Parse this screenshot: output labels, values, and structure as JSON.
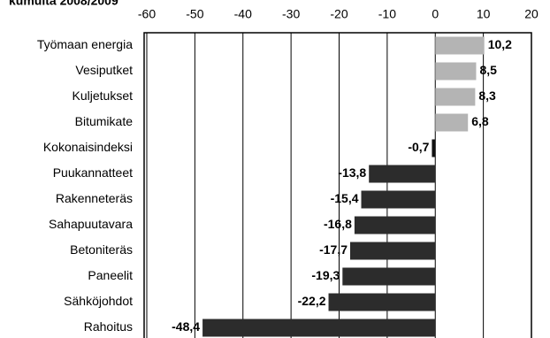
{
  "chart_data": {
    "type": "bar",
    "orientation": "horizontal",
    "title": "kumulta 2008/2009",
    "categories": [
      "Työmaan energia",
      "Vesiputket",
      "Kuljetukset",
      "Bitumikate",
      "Kokonaisindeksi",
      "Puukannatteet",
      "Rakenneteräs",
      "Sahapuutavara",
      "Betoniteräs",
      "Paneelit",
      "Sähköjohdot",
      "Rahoitus"
    ],
    "values": [
      10.2,
      8.5,
      8.3,
      6.8,
      -0.7,
      -13.8,
      -15.4,
      -16.8,
      -17.7,
      -19.3,
      -22.2,
      -48.4
    ],
    "value_labels": [
      "10,2",
      "8,5",
      "8,3",
      "6,8",
      "-0,7",
      "-13,8",
      "-15,4",
      "-16,8",
      "-17,7",
      "-19,3",
      "-22,2",
      "-48,4"
    ],
    "colors": [
      "#b4b4b4",
      "#b4b4b4",
      "#b4b4b4",
      "#b4b4b4",
      "#111111",
      "#2c2c2c",
      "#2c2c2c",
      "#2c2c2c",
      "#2c2c2c",
      "#2c2c2c",
      "#2c2c2c",
      "#2c2c2c"
    ],
    "xlim": [
      -60,
      20
    ],
    "xticks": [
      -60,
      -50,
      -40,
      -30,
      -20,
      -10,
      0,
      10,
      20
    ],
    "grid": true
  }
}
